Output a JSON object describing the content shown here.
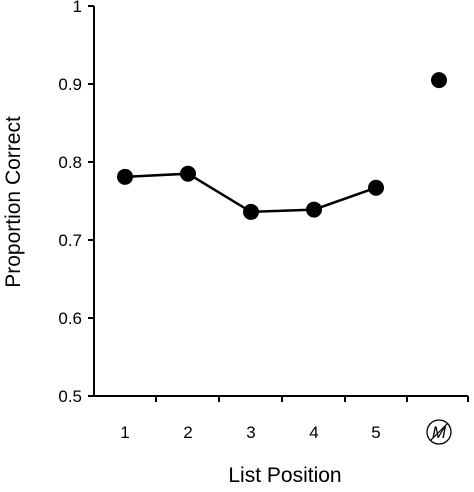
{
  "chart_data": {
    "type": "scatter",
    "title": "",
    "xlabel": "List Position",
    "ylabel": "Proportion Correct",
    "ylim": [
      0.5,
      1
    ],
    "yticks": [
      "0.5",
      "0.6",
      "0.7",
      "0.8",
      "0.9",
      "1"
    ],
    "categories": [
      "1",
      "2",
      "3",
      "4",
      "5",
      "M"
    ],
    "series": [
      {
        "values": [
          0.781,
          0.785,
          0.736,
          0.739,
          0.767
        ],
        "connected": true,
        "categories": [
          "1",
          "2",
          "3",
          "4",
          "5"
        ]
      },
      {
        "values": [
          0.905
        ],
        "connected": false,
        "categories": [
          "M"
        ]
      }
    ],
    "grid": false,
    "legend": "none",
    "colors": {
      "marker": "#000000",
      "line": "#000000",
      "axis": "#000000"
    },
    "special_tick_icon": "circled-M-icon"
  }
}
